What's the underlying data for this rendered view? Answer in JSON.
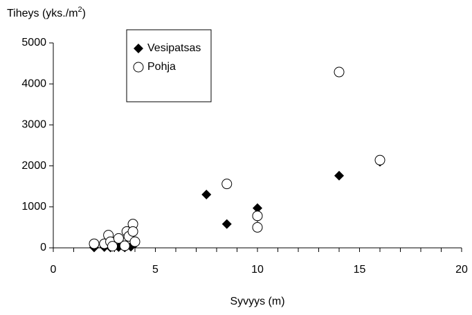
{
  "chart_data": {
    "type": "scatter",
    "y_label": {
      "text": "Tiheys (yks./m",
      "superscript": "2",
      "suffix": ")"
    },
    "x_label": "Syvyys (m)",
    "xlim": [
      0,
      20
    ],
    "xticks": [
      0,
      5,
      10,
      15,
      20
    ],
    "x_minor_ticks": [
      1,
      2,
      3,
      4,
      6,
      7,
      8,
      9,
      11,
      12,
      13,
      14,
      16,
      17,
      18,
      19
    ],
    "ylim": [
      0,
      5000
    ],
    "yticks": [
      0,
      1000,
      2000,
      3000,
      4000,
      5000
    ],
    "grid": false,
    "legend": "upper-left",
    "series": [
      {
        "name": "Vesipatsas",
        "marker": "diamond",
        "color": "#000000",
        "x": [
          2.0,
          2.5,
          2.8,
          3.2,
          3.5,
          3.8,
          4.0,
          7.5,
          8.5,
          10,
          10,
          14,
          16
        ],
        "values": [
          10,
          20,
          10,
          20,
          10,
          30,
          100,
          1300,
          580,
          970,
          750,
          1760,
          2100
        ]
      },
      {
        "name": "Pohja",
        "marker": "circle",
        "color": "#000000",
        "x": [
          2.0,
          2.5,
          2.7,
          2.8,
          2.9,
          3.2,
          3.5,
          3.6,
          3.7,
          3.9,
          3.9,
          4.0,
          8.5,
          10,
          10,
          14,
          16
        ],
        "values": [
          100,
          100,
          310,
          150,
          40,
          230,
          50,
          400,
          280,
          580,
          400,
          150,
          1560,
          780,
          500,
          4290,
          2140
        ]
      }
    ]
  }
}
